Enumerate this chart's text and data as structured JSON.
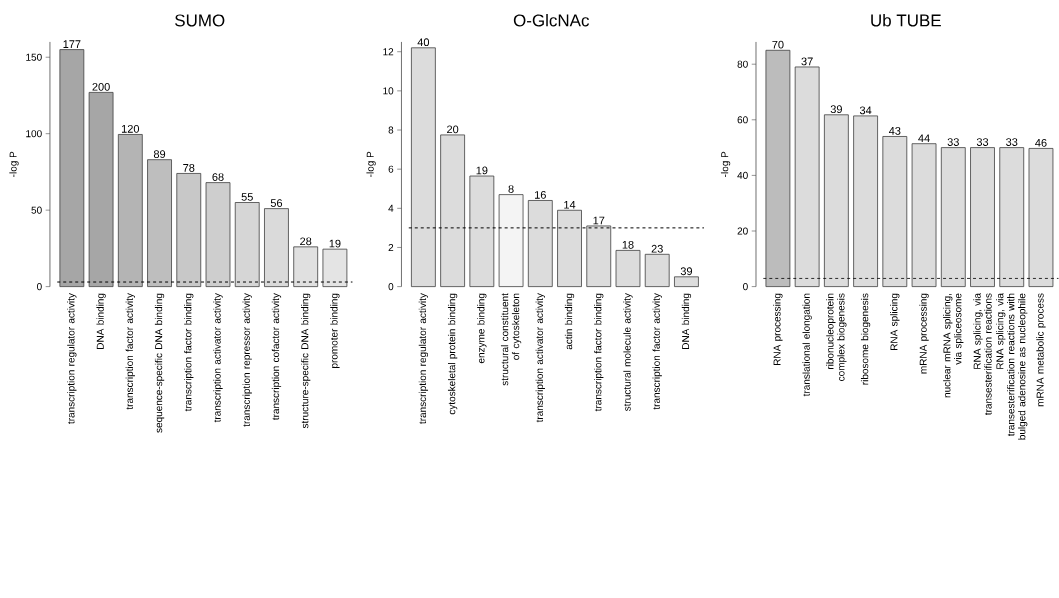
{
  "chart_data": [
    {
      "type": "bar",
      "title": "SUMO",
      "ylabel": "-log P",
      "categories": [
        "transcription regulator activity",
        "DNA binding",
        "transcription factor activity",
        "sequence-specific DNA binding",
        "transcription factor binding",
        "transcription activator activity",
        "transcription repressor activity",
        "transcription cofactor activity",
        "structure-specific DNA binding",
        "promoter binding"
      ],
      "values": [
        155,
        127,
        99.5,
        83,
        74,
        68,
        55,
        51,
        26,
        24.5
      ],
      "colors": [
        "#a6a6a6",
        "#a6a6a6",
        "#b4b4b4",
        "#bebebe",
        "#c8c8c8",
        "#cecece",
        "#d6d6d6",
        "#dadada",
        "#e0e0e0",
        "#e4e4e4"
      ],
      "annotations": [
        {
          "text": "177",
          "x": "transcription regulator activity",
          "y": 155
        },
        {
          "text": "200",
          "x": "DNA binding",
          "y": 127
        },
        {
          "text": "120",
          "x": "transcription factor activity",
          "y": 99.5
        },
        {
          "text": "89",
          "x": "sequence-specific DNA binding",
          "y": 83
        },
        {
          "text": "78",
          "x": "transcription factor binding",
          "y": 74
        },
        {
          "text": "68",
          "x": "transcription activator activity",
          "y": 68
        },
        {
          "text": "55",
          "x": "transcription repressor activity",
          "y": 55
        },
        {
          "text": "56",
          "x": "transcription cofactor activity",
          "y": 51
        },
        {
          "text": "28",
          "x": "structure-specific DNA binding",
          "y": 26
        },
        {
          "text": "19",
          "x": "promoter binding",
          "y": 24.5
        }
      ],
      "ylim": [
        0,
        160
      ],
      "yticks": [
        0,
        50,
        100,
        150
      ],
      "ref_lines": [
        {
          "axis": "y",
          "value": 3,
          "line_style": "dashed"
        }
      ]
    },
    {
      "type": "bar",
      "title": "O-GlcNAc",
      "ylabel": "-log P",
      "categories": [
        "transcription regulator activity",
        "cytoskeletal protein binding",
        "enzyme binding",
        "structural constituent of cytoskeleton",
        "transcription activator activity",
        "actin binding",
        "transcription factor binding",
        "structural molecule activity",
        "transcription factor activity",
        "DNA binding"
      ],
      "values": [
        12.2,
        7.75,
        5.65,
        4.7,
        4.4,
        3.9,
        3.1,
        1.85,
        1.65,
        0.5
      ],
      "colors": [
        "#dcdcdc",
        "#dcdcdc",
        "#dcdcdc",
        "#f4f4f4",
        "#dcdcdc",
        "#dcdcdc",
        "#dcdcdc",
        "#dcdcdc",
        "#dcdcdc",
        "#dcdcdc"
      ],
      "annotations": [
        {
          "text": "40",
          "x": "transcription regulator activity",
          "y": 12.2
        },
        {
          "text": "20",
          "x": "cytoskeletal protein binding",
          "y": 7.75
        },
        {
          "text": "19",
          "x": "enzyme binding",
          "y": 5.65
        },
        {
          "text": "8",
          "x": "structural constituent of cytoskeleton",
          "y": 4.7
        },
        {
          "text": "16",
          "x": "transcription activator activity",
          "y": 4.4
        },
        {
          "text": "14",
          "x": "actin binding",
          "y": 3.9
        },
        {
          "text": "17",
          "x": "transcription factor binding",
          "y": 3.1
        },
        {
          "text": "18",
          "x": "structural molecule activity",
          "y": 1.85
        },
        {
          "text": "23",
          "x": "transcription factor activity",
          "y": 1.65
        },
        {
          "text": "39",
          "x": "DNA binding",
          "y": 0.5
        }
      ],
      "ylim": [
        0,
        12.5
      ],
      "yticks": [
        0,
        2,
        4,
        6,
        8,
        10,
        12
      ],
      "ref_lines": [
        {
          "axis": "y",
          "value": 3,
          "line_style": "dashed"
        }
      ]
    },
    {
      "type": "bar",
      "title": "Ub TUBE",
      "ylabel": "-log P",
      "categories": [
        "RNA processing",
        "translational elongation",
        "ribonucleoprotein complex biogenesis",
        "ribosome biogenesis",
        "RNA splicing",
        "mRNA processing",
        "nuclear mRNA splicing, via spliceosome",
        "RNA splicing, via transesterification reactions",
        "RNA splicing, via transesterification reactions with bulged adenosine as nucleophile",
        "mRNA metabolic process"
      ],
      "values": [
        85,
        79,
        61.8,
        61.4,
        54,
        51.4,
        50,
        50,
        50,
        49.7
      ],
      "colors": [
        "#bcbcbc",
        "#dcdcdc",
        "#dcdcdc",
        "#dcdcdc",
        "#dcdcdc",
        "#dcdcdc",
        "#dcdcdc",
        "#dcdcdc",
        "#dcdcdc",
        "#dcdcdc"
      ],
      "annotations": [
        {
          "text": "70",
          "x": "RNA processing",
          "y": 85
        },
        {
          "text": "37",
          "x": "translational elongation",
          "y": 79
        },
        {
          "text": "39",
          "x": "ribonucleoprotein complex biogenesis",
          "y": 61.8
        },
        {
          "text": "34",
          "x": "ribosome biogenesis",
          "y": 61.4
        },
        {
          "text": "43",
          "x": "RNA splicing",
          "y": 54
        },
        {
          "text": "44",
          "x": "mRNA processing",
          "y": 51.4
        },
        {
          "text": "33",
          "x": "nuclear mRNA splicing, via spliceosome",
          "y": 50
        },
        {
          "text": "33",
          "x": "RNA splicing, via transesterification reactions",
          "y": 50
        },
        {
          "text": "33",
          "x": "RNA splicing, via transesterification reactions with bulged adenosine as nucleophile",
          "y": 50
        },
        {
          "text": "46",
          "x": "mRNA metabolic process",
          "y": 49.7
        }
      ],
      "ylim": [
        0,
        88
      ],
      "yticks": [
        0,
        20,
        40,
        60,
        80
      ],
      "ref_lines": [
        {
          "axis": "y",
          "value": 3,
          "line_style": "dashed"
        }
      ]
    }
  ]
}
